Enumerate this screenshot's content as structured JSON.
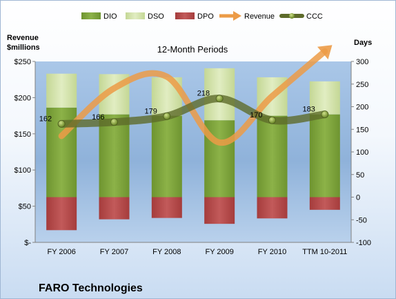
{
  "chart_data": {
    "type": "bar",
    "title": "12-Month Periods",
    "footer": "FARO Technologies",
    "categories": [
      "FY 2006",
      "FY 2007",
      "FY 2008",
      "FY 2009",
      "FY 2010",
      "TTM 10-2011"
    ],
    "left_axis": {
      "title_lines": [
        "Revenue",
        "$millions"
      ],
      "ylim": [
        0,
        250
      ],
      "ticks": [
        0,
        50,
        100,
        150,
        200,
        250
      ],
      "tick_labels": [
        "$-",
        "$50",
        "$100",
        "$150",
        "$200",
        "$250"
      ]
    },
    "right_axis": {
      "title": "Days",
      "ylim": [
        -100,
        300
      ],
      "ticks": [
        -100,
        -50,
        0,
        50,
        100,
        150,
        200,
        250,
        300
      ],
      "tick_labels": [
        "-100",
        "-50",
        "0",
        "50",
        "100",
        "150",
        "200",
        "250",
        "300"
      ]
    },
    "series": [
      {
        "name": "DIO",
        "axis": "right",
        "kind": "stacked_bar",
        "values": [
          198,
          183,
          180,
          170,
          180,
          183
        ]
      },
      {
        "name": "DSO",
        "axis": "right",
        "kind": "stacked_bar",
        "values": [
          75,
          89,
          85,
          115,
          85,
          73
        ]
      },
      {
        "name": "DPO",
        "axis": "right",
        "kind": "negative_bar",
        "values": [
          -73,
          -49,
          -46,
          -59,
          -47,
          -28
        ]
      },
      {
        "name": "Revenue",
        "axis": "left",
        "kind": "line",
        "values": [
          147,
          213,
          229,
          138,
          202,
          264
        ]
      },
      {
        "name": "CCC",
        "axis": "right",
        "kind": "line",
        "values": [
          162,
          166,
          179,
          218,
          170,
          183
        ],
        "labels": [
          "162",
          "166",
          "179",
          "218",
          "170",
          "183"
        ]
      }
    ],
    "legend": {
      "position": "top",
      "items": [
        "DIO",
        "DSO",
        "DPO",
        "Revenue",
        "CCC"
      ]
    },
    "grid": false,
    "colors": {
      "DIO": "#7ea33a",
      "DSO": "#d3e3a9",
      "DPO": "#b64a4a",
      "Revenue": "#ec9b47",
      "CCC": "#5e6b2b",
      "plot_bg": "#8fb4db"
    }
  }
}
